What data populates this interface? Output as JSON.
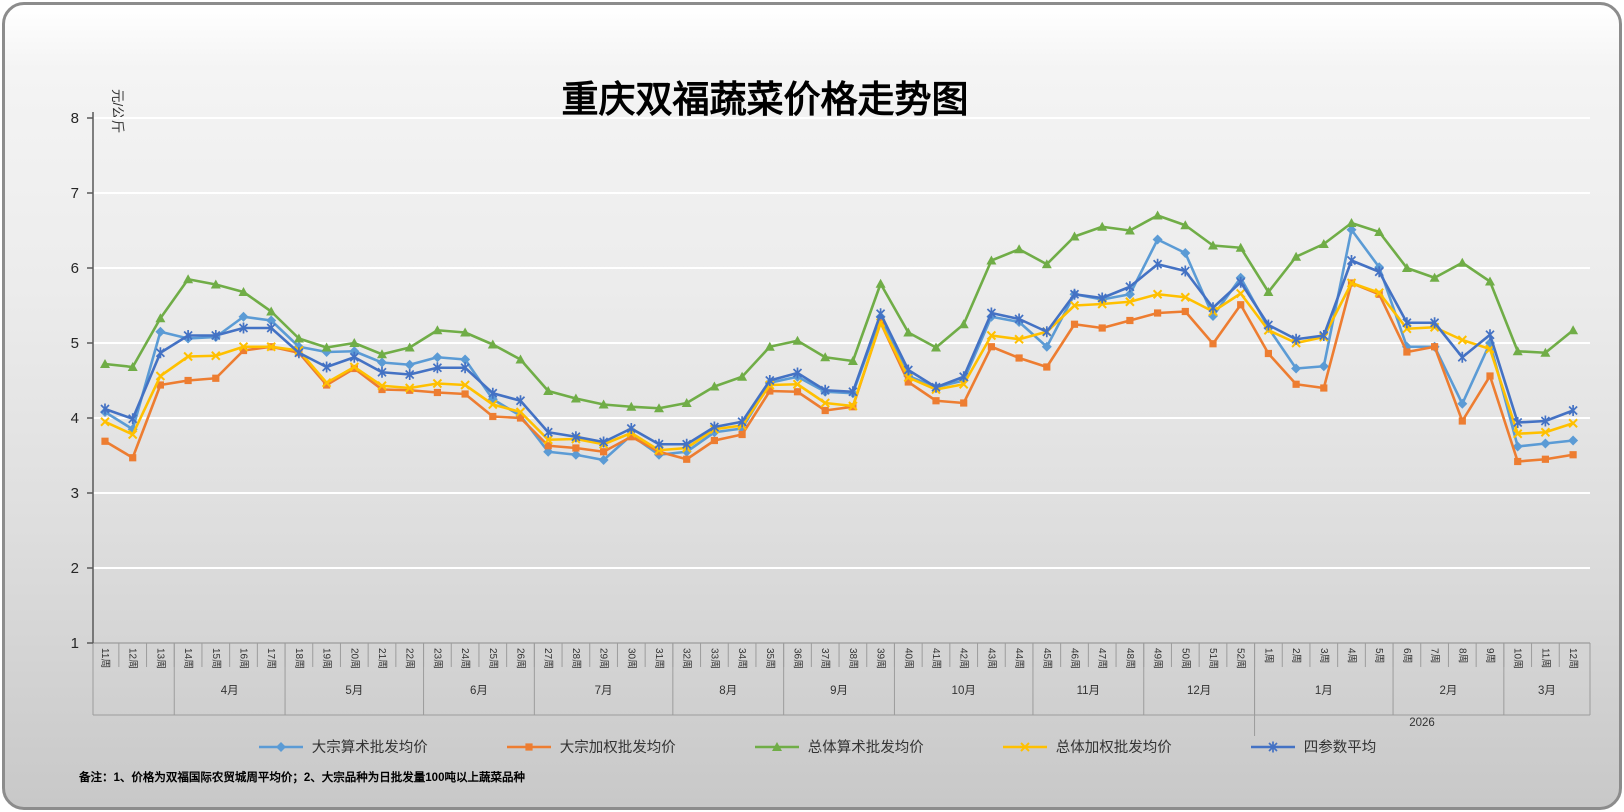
{
  "title": "重庆双福蔬菜价格走势图",
  "y_axis": {
    "unit_label": "元/公斤",
    "tick_labels": [
      "8",
      "7",
      "6",
      "5",
      "4",
      "3",
      "2",
      "1"
    ],
    "min": 1,
    "max": 8
  },
  "year_label": "2026",
  "footnote": "备注：1、价格为双福国际农贸城周平均价；2、大宗品种为日批发量100吨以上蔬菜品种",
  "colors": {
    "bulk_arith": "#5B9BD5",
    "bulk_weighted": "#ED7D31",
    "overall_arith": "#70AD47",
    "overall_weighted": "#FFC000",
    "four_param": "#4472C4",
    "gridline": "#ffffff",
    "axis": "#9c9c9c",
    "frame_border": "#8c8c8c"
  },
  "chart_data": {
    "type": "line",
    "title": "重庆双福蔬菜价格走势图",
    "ylabel": "元/公斤",
    "ylim": [
      1,
      8
    ],
    "grid": true,
    "legend_position": "bottom",
    "x_weeks": [
      "11周",
      "12周",
      "13周",
      "14周",
      "15周",
      "16周",
      "17周",
      "18周",
      "19周",
      "20周",
      "21周",
      "22周",
      "23周",
      "24周",
      "25周",
      "26周",
      "27周",
      "28周",
      "29周",
      "30周",
      "31周",
      "32周",
      "33周",
      "34周",
      "35周",
      "36周",
      "37周",
      "38周",
      "39周",
      "40周",
      "41周",
      "42周",
      "43周",
      "44周",
      "45周",
      "46周",
      "47周",
      "48周",
      "49周",
      "50周",
      "51周",
      "52周",
      "1周",
      "2周",
      "3周",
      "4周",
      "5周",
      "6周",
      "7周",
      "8周",
      "9周",
      "10周",
      "11周",
      "12周"
    ],
    "month_groups": [
      {
        "label": "",
        "weeks": 3
      },
      {
        "label": "4月",
        "weeks": 4
      },
      {
        "label": "5月",
        "weeks": 5
      },
      {
        "label": "6月",
        "weeks": 4
      },
      {
        "label": "7月",
        "weeks": 5
      },
      {
        "label": "8月",
        "weeks": 4
      },
      {
        "label": "9月",
        "weeks": 4
      },
      {
        "label": "10月",
        "weeks": 5
      },
      {
        "label": "11月",
        "weeks": 4
      },
      {
        "label": "12月",
        "weeks": 4
      },
      {
        "label": "1月",
        "weeks": 5
      },
      {
        "label": "2月",
        "weeks": 4
      },
      {
        "label": "3月",
        "weeks": 3
      }
    ],
    "year_boundary_after_index": 41,
    "series": [
      {
        "name": "大宗算术批发均价",
        "color": "#5B9BD5",
        "marker": "diamond",
        "values": [
          4.08,
          3.85,
          5.15,
          5.06,
          5.08,
          5.35,
          5.3,
          4.95,
          4.88,
          4.89,
          4.74,
          4.71,
          4.81,
          4.78,
          4.25,
          4.03,
          3.55,
          3.51,
          3.44,
          3.77,
          3.51,
          3.55,
          3.81,
          3.86,
          4.47,
          4.55,
          4.35,
          4.33,
          5.35,
          4.56,
          4.41,
          4.5,
          5.35,
          5.28,
          4.95,
          5.65,
          5.58,
          5.65,
          6.38,
          6.2,
          5.36,
          5.87,
          5.2,
          4.66,
          4.69,
          6.51,
          6.01,
          4.95,
          4.95,
          4.19,
          5.0,
          3.62,
          3.66,
          3.7
        ]
      },
      {
        "name": "大宗加权批发均价",
        "color": "#ED7D31",
        "marker": "square",
        "values": [
          3.69,
          3.47,
          4.44,
          4.5,
          4.53,
          4.9,
          4.95,
          4.87,
          4.44,
          4.66,
          4.38,
          4.37,
          4.34,
          4.32,
          4.02,
          4.0,
          3.63,
          3.6,
          3.55,
          3.75,
          3.55,
          3.45,
          3.7,
          3.78,
          4.36,
          4.35,
          4.1,
          4.15,
          5.27,
          4.48,
          4.23,
          4.2,
          4.95,
          4.8,
          4.68,
          5.25,
          5.2,
          5.3,
          5.4,
          5.42,
          4.99,
          5.51,
          4.86,
          4.45,
          4.4,
          5.8,
          5.65,
          4.88,
          4.95,
          3.96,
          4.56,
          3.42,
          3.45,
          3.51
        ]
      },
      {
        "name": "总体算术批发均价",
        "color": "#70AD47",
        "marker": "triangle",
        "values": [
          4.72,
          4.68,
          5.33,
          5.85,
          5.78,
          5.68,
          5.42,
          5.06,
          4.94,
          5.0,
          4.85,
          4.94,
          5.17,
          5.14,
          4.98,
          4.78,
          4.36,
          4.26,
          4.18,
          4.15,
          4.13,
          4.2,
          4.42,
          4.55,
          4.95,
          5.03,
          4.81,
          4.76,
          5.79,
          5.14,
          4.94,
          5.25,
          6.1,
          6.25,
          6.05,
          6.42,
          6.55,
          6.5,
          6.7,
          6.57,
          6.3,
          6.27,
          5.68,
          6.15,
          6.32,
          6.6,
          6.48,
          6.0,
          5.87,
          6.07,
          5.82,
          4.89,
          4.87,
          5.17
        ]
      },
      {
        "name": "总体加权批发均价",
        "color": "#FFC000",
        "marker": "x",
        "values": [
          3.95,
          3.78,
          4.56,
          4.82,
          4.83,
          4.95,
          4.95,
          4.9,
          4.47,
          4.68,
          4.43,
          4.4,
          4.46,
          4.44,
          4.18,
          4.08,
          3.71,
          3.72,
          3.65,
          3.8,
          3.57,
          3.6,
          3.85,
          3.9,
          4.44,
          4.45,
          4.2,
          4.16,
          5.27,
          4.54,
          4.38,
          4.45,
          5.1,
          5.05,
          5.15,
          5.5,
          5.52,
          5.55,
          5.65,
          5.61,
          5.42,
          5.66,
          5.17,
          5.0,
          5.08,
          5.8,
          5.67,
          5.19,
          5.21,
          5.04,
          4.92,
          3.79,
          3.81,
          3.93
        ]
      },
      {
        "name": "四参数平均",
        "color": "#4472C4",
        "marker": "star",
        "values": [
          4.12,
          3.99,
          4.87,
          5.1,
          5.1,
          5.2,
          5.2,
          4.87,
          4.68,
          4.81,
          4.61,
          4.58,
          4.67,
          4.67,
          4.33,
          4.23,
          3.81,
          3.75,
          3.68,
          3.86,
          3.65,
          3.65,
          3.88,
          3.95,
          4.5,
          4.6,
          4.37,
          4.35,
          5.39,
          4.64,
          4.41,
          4.55,
          5.4,
          5.32,
          5.15,
          5.65,
          5.6,
          5.75,
          6.05,
          5.96,
          5.47,
          5.81,
          5.24,
          5.05,
          5.1,
          6.1,
          5.95,
          5.27,
          5.27,
          4.81,
          5.11,
          3.94,
          3.96,
          4.1
        ]
      }
    ]
  }
}
